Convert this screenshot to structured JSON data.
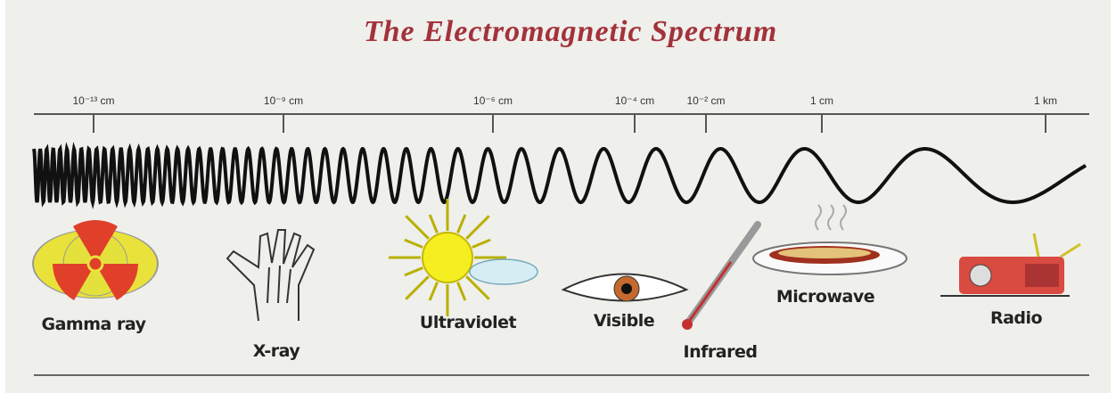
{
  "title": "The Electromagnetic Spectrum",
  "scale": [
    "10⁻¹³ cm",
    "10⁻⁹ cm",
    "10⁻⁶ cm",
    "10⁻⁴ cm",
    "10⁻² cm",
    "1 cm",
    "1 km"
  ],
  "bands": [
    "Gamma ray",
    "X-ray",
    "Ultraviolet",
    "Visible",
    "Infrared",
    "Microwave",
    "Radio"
  ]
}
